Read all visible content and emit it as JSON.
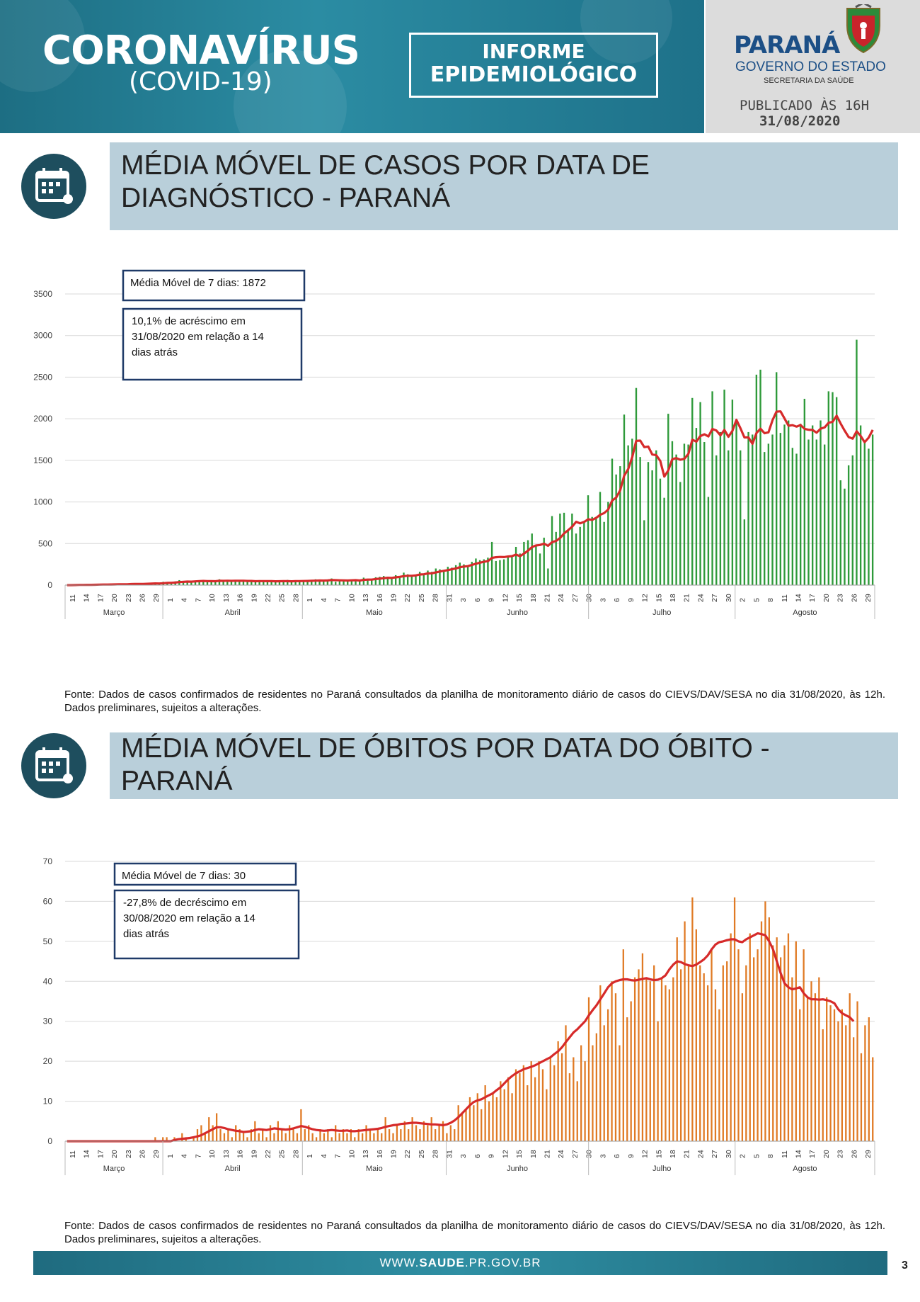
{
  "header": {
    "brand": "CORONAVÍRUS",
    "brand_sub": "(COVID-19)",
    "badge_line1": "INFORME",
    "badge_line2": "EPIDEMIOLÓGICO",
    "state": "PARANÁ",
    "government": "GOVERNO DO ESTADO",
    "secretariat": "SECRETARIA DA SAÚDE",
    "published": "PUBLICADO ÀS 16H",
    "published_date": "31/08/2020",
    "colors": {
      "teal": "#1d6e83",
      "panel": "#dcdcdc",
      "blue": "#1c4f86"
    }
  },
  "sections": [
    {
      "title_line1": "MÉDIA MÓVEL DE CASOS POR DATA DE",
      "title_line2": "DIAGNÓSTICO - PARANÁ",
      "icon": "calendar-virus-icon"
    },
    {
      "title_line1": "MÉDIA MÓVEL DE ÓBITOS POR DATA DO ÓBITO -",
      "title_line2": "PARANÁ",
      "icon": "calendar-virus-icon"
    }
  ],
  "source_note": "Fonte: Dados de casos confirmados de residentes no Paraná consultados da planilha de monitoramento diário de casos do CIEVS/DAV/SESA no dia 31/08/2020, às 12h. Dados preliminares, sujeitos a alterações.",
  "footer": {
    "site_prefix": "WWW.",
    "site_bold": "SAUDE",
    "site_suffix": ".PR.GOV.BR",
    "page": "3"
  },
  "chart_data": [
    {
      "type": "bar",
      "overlay": "line",
      "x_start": "2020-03-11",
      "x_end": "2020-08-31",
      "bar_color": "#2e9a3a",
      "line_color": "#d62a2a",
      "ylim": [
        0,
        3500
      ],
      "yticks": [
        0,
        500,
        1000,
        1500,
        2000,
        2500,
        3000,
        3500
      ],
      "day_ticks": [
        "11",
        "14",
        "17",
        "20",
        "23",
        "26",
        "29",
        "1",
        "4",
        "7",
        "10",
        "13",
        "16",
        "19",
        "22",
        "25",
        "28",
        "1",
        "4",
        "7",
        "10",
        "13",
        "16",
        "19",
        "22",
        "25",
        "28",
        "31",
        "3",
        "6",
        "9",
        "12",
        "15",
        "18",
        "21",
        "24",
        "27",
        "30",
        "3",
        "6",
        "9",
        "12",
        "15",
        "18",
        "21",
        "24",
        "27",
        "30",
        "2",
        "5",
        "8",
        "11",
        "14",
        "17",
        "20",
        "23",
        "26",
        "29"
      ],
      "months": [
        "Março",
        "Abril",
        "Maio",
        "Junho",
        "Julho",
        "Agosto"
      ],
      "annotation_1": "Média Móvel de 7 dias: 1872",
      "annotation_2": [
        "10,1% de acréscimo em",
        "31/08/2020  em relação a 14",
        "dias atrás"
      ],
      "bars": [
        0,
        0,
        3,
        6,
        5,
        8,
        0,
        9,
        12,
        6,
        10,
        9,
        15,
        11,
        8,
        14,
        22,
        18,
        12,
        16,
        25,
        20,
        30,
        18,
        40,
        35,
        28,
        45,
        60,
        50,
        42,
        35,
        55,
        48,
        62,
        40,
        52,
        38,
        70,
        45,
        60,
        50,
        55,
        48,
        40,
        52,
        45,
        38,
        60,
        55,
        42,
        48,
        35,
        50,
        44,
        62,
        40,
        58,
        48,
        45,
        52,
        60,
        70,
        55,
        50,
        60,
        80,
        40,
        52,
        60,
        45,
        68,
        70,
        55,
        90,
        75,
        60,
        95,
        100,
        110,
        90,
        80,
        120,
        105,
        150,
        130,
        110,
        120,
        160,
        140,
        175,
        160,
        200,
        190,
        180,
        220,
        210,
        240,
        270,
        250,
        230,
        280,
        320,
        300,
        310,
        330,
        520,
        290,
        300,
        310,
        350,
        340,
        460,
        380,
        520,
        540,
        620,
        480,
        380,
        570,
        200,
        830,
        640,
        860,
        870,
        650,
        860,
        620,
        700,
        760,
        1080,
        820,
        820,
        1120,
        760,
        1000,
        1520,
        1330,
        1430,
        2050,
        1680,
        1760,
        2370,
        1540,
        780,
        1480,
        1380,
        1620,
        1280,
        1050,
        2060,
        1730,
        1570,
        1240,
        1700,
        1690,
        2250,
        1890,
        2200,
        1720,
        1060,
        2330,
        1560,
        1840,
        2350,
        1620,
        2230,
        1980,
        1620,
        790,
        1840,
        1810,
        2530,
        2590,
        1600,
        1700,
        1810,
        2560,
        1830,
        1930,
        1980,
        1650,
        1580,
        1940,
        2240,
        1750,
        1920,
        1750,
        1980,
        1690,
        2330,
        2320,
        2260,
        1260,
        1160,
        1440,
        1560,
        2950,
        1920,
        1740,
        1640,
        1810
      ]
    },
    {
      "type": "bar",
      "overlay": "line",
      "x_start": "2020-03-11",
      "x_end": "2020-08-31",
      "bar_color": "#e07a24",
      "line_color": "#d62a2a",
      "ylim": [
        0,
        70
      ],
      "yticks": [
        0,
        10,
        20,
        30,
        40,
        50,
        60,
        70
      ],
      "day_ticks": [
        "11",
        "14",
        "17",
        "20",
        "23",
        "26",
        "29",
        "1",
        "4",
        "7",
        "10",
        "13",
        "16",
        "19",
        "22",
        "25",
        "28",
        "1",
        "4",
        "7",
        "10",
        "13",
        "16",
        "19",
        "22",
        "25",
        "28",
        "31",
        "3",
        "6",
        "9",
        "12",
        "15",
        "18",
        "21",
        "24",
        "27",
        "30",
        "3",
        "6",
        "9",
        "12",
        "15",
        "18",
        "21",
        "24",
        "27",
        "30",
        "2",
        "5",
        "8",
        "11",
        "14",
        "17",
        "20",
        "23",
        "26",
        "29"
      ],
      "months": [
        "Março",
        "Abril",
        "Maio",
        "Junho",
        "Julho",
        "Agosto"
      ],
      "annotation_1": "Média Móvel de 7 dias: 30",
      "annotation_2": [
        "-27,8% de decréscimo em",
        "30/08/2020  em relação a 14",
        "dias atrás"
      ],
      "bars": [
        0,
        0,
        0,
        0,
        0,
        0,
        0,
        0,
        0,
        0,
        0,
        0,
        0,
        0,
        0,
        0,
        0,
        0,
        0,
        0,
        0,
        0,
        0,
        1,
        0,
        1,
        1,
        0,
        1,
        0,
        2,
        1,
        0,
        1,
        3,
        4,
        2,
        6,
        4,
        7,
        3,
        2,
        3,
        1,
        4,
        3,
        2,
        1,
        3,
        5,
        2,
        3,
        1,
        4,
        2,
        5,
        3,
        2,
        4,
        3,
        2,
        8,
        3,
        4,
        2,
        1,
        3,
        2,
        3,
        1,
        4,
        2,
        3,
        2,
        3,
        1,
        3,
        2,
        4,
        3,
        2,
        3,
        2,
        6,
        3,
        2,
        4,
        3,
        5,
        3,
        6,
        4,
        3,
        5,
        4,
        6,
        3,
        4,
        5,
        2,
        4,
        3,
        9,
        7,
        8,
        11,
        9,
        12,
        8,
        14,
        10,
        12,
        11,
        15,
        13,
        16,
        12,
        18,
        17,
        19,
        14,
        20,
        16,
        20,
        18,
        13,
        21,
        19,
        25,
        22,
        29,
        17,
        21,
        15,
        24,
        20,
        36,
        24,
        27,
        39,
        29,
        33,
        40,
        37,
        24,
        48,
        31,
        35,
        41,
        43,
        47,
        41,
        40,
        44,
        30,
        41,
        39,
        38,
        41,
        51,
        43,
        55,
        44,
        61,
        53,
        44,
        42,
        39,
        48,
        38,
        33,
        44,
        45,
        52,
        61,
        48,
        37,
        44,
        52,
        46,
        48,
        55,
        60,
        56,
        49,
        51,
        46,
        49,
        52,
        41,
        50,
        33,
        48,
        36,
        40,
        37,
        41,
        28,
        36,
        34,
        33,
        30,
        33,
        29,
        37,
        26,
        35,
        22,
        29,
        31,
        21
      ],
      "line": [
        0,
        0,
        0,
        0,
        0,
        0,
        0,
        0,
        0,
        0,
        0,
        0,
        0,
        0,
        0,
        0,
        0,
        0,
        0,
        0,
        0,
        0,
        0,
        0,
        0,
        0,
        0,
        0,
        0.3,
        0.5,
        0.6,
        0.7,
        0.8,
        1,
        1.2,
        1.5,
        2,
        2.5,
        3,
        3.5,
        3.5,
        3.3,
        3,
        2.8,
        2.6,
        2.5,
        2.3,
        2.4,
        2.5,
        2.8,
        3,
        2.9,
        2.8,
        3,
        3.2,
        3.1,
        3,
        2.9,
        3,
        3.2,
        3.5,
        3.8,
        3.6,
        3.3,
        3,
        2.8,
        2.7,
        2.6,
        2.7,
        2.8,
        2.7,
        2.6,
        2.6,
        2.7,
        2.5,
        2.5,
        2.6,
        2.7,
        2.8,
        2.9,
        3,
        3.1,
        3.3,
        3.6,
        3.8,
        4,
        4.1,
        4.3,
        4.4,
        4.5,
        4.6,
        4.6,
        4.5,
        4.4,
        4.3,
        4.2,
        4.2,
        4.1,
        4,
        4.2,
        4.6,
        5.2,
        6,
        7,
        8,
        9,
        9.8,
        10.2,
        10.5,
        11,
        11.5,
        12,
        12.8,
        13.5,
        14.5,
        15.5,
        16.3,
        17,
        17.5,
        18,
        18.3,
        18.6,
        19,
        19.5,
        20,
        20.5,
        21,
        21.8,
        22.5,
        23.5,
        24.8,
        26,
        27.2,
        28,
        29,
        30,
        31.5,
        32.8,
        34,
        35.5,
        37,
        38.5,
        39.5,
        40,
        40.3,
        40.5,
        40.5,
        40.3,
        40.2,
        40.4,
        40.6,
        40.8,
        40.5,
        40.3,
        40.4,
        40.8,
        41.5,
        43,
        44.2,
        45,
        44.8,
        44.3,
        44,
        43.8,
        44.2,
        44.8,
        45.5,
        46.5,
        48,
        49.2,
        49.8,
        50,
        50.3,
        50.5,
        50.5,
        50,
        49.8,
        50.5,
        51,
        51.5,
        52,
        51.8,
        51.5,
        50,
        48,
        45,
        42,
        39.5,
        38.5,
        38,
        38.2,
        38.5,
        37,
        36,
        35.5,
        35.5,
        35.4,
        35.5,
        35.3,
        35,
        34.5,
        33,
        32,
        31.5,
        31,
        30
      ]
    }
  ]
}
